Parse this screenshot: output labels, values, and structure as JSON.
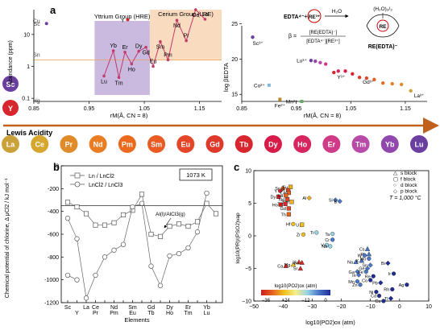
{
  "panel_labels": {
    "a": "a",
    "b": "b",
    "c": "c"
  },
  "side_elements": [
    {
      "symbol": "Sc",
      "color": "#6b3fa0"
    },
    {
      "symbol": "Y",
      "color": "#d8262f"
    }
  ],
  "lanthanide_row": {
    "lewis_acidity_label": "Lewis Acidity",
    "elements": [
      {
        "symbol": "La",
        "color": "#c9a23a"
      },
      {
        "symbol": "Ce",
        "color": "#d6a62e"
      },
      {
        "symbol": "Pr",
        "color": "#e08b2a"
      },
      {
        "symbol": "Nd",
        "color": "#ea7d22"
      },
      {
        "symbol": "Pm",
        "color": "#ec6a1e"
      },
      {
        "symbol": "Sm",
        "color": "#ea5a23"
      },
      {
        "symbol": "Eu",
        "color": "#e44628"
      },
      {
        "symbol": "Gd",
        "color": "#de3a2c"
      },
      {
        "symbol": "Tb",
        "color": "#d8262f"
      },
      {
        "symbol": "Dy",
        "color": "#d81c4a"
      },
      {
        "symbol": "Ho",
        "color": "#d7265f"
      },
      {
        "symbol": "Er",
        "color": "#cf3b86"
      },
      {
        "symbol": "Tm",
        "color": "#b84aa8"
      },
      {
        "symbol": "Yb",
        "color": "#9048ac"
      },
      {
        "symbol": "Lu",
        "color": "#6b3fa0"
      }
    ]
  },
  "chart_data": [
    {
      "id": "abundance",
      "type": "line",
      "ylabel": "Abundance (ppm)",
      "xlabel": "rM(Å, CN = 8)",
      "y_scale": "log",
      "xlim": [
        0.85,
        1.19
      ],
      "ylim": [
        0.08,
        60
      ],
      "x_ticks": [
        0.85,
        0.95,
        1.05,
        1.15
      ],
      "x_tick_labels": [
        "0.85",
        "0.95",
        "1.05",
        "1.15"
      ],
      "y_ticks": [
        0.1,
        1,
        10
      ],
      "y_tick_labels": [
        "0.1",
        "1",
        "10"
      ],
      "group_labels": {
        "yttrium": "Yttrium Group (HRE)",
        "cerium": "Cerium Group (LRE)"
      },
      "group_ranges": {
        "yttrium": [
          0.96,
          1.06
        ],
        "cerium": [
          1.06,
          1.19
        ]
      },
      "reference_points": [
        {
          "label": "Cu",
          "x": 0.87,
          "y": 27,
          "color": "#9a8a4a"
        },
        {
          "label": "Sc",
          "x": 0.87,
          "y": 22,
          "color": "#6b3fa0"
        },
        {
          "label": "Sn",
          "x": 0.87,
          "y": 2.3,
          "color": "#777777"
        },
        {
          "label": "Hg",
          "x": 0.87,
          "y": 0.085,
          "color": "#777777"
        }
      ],
      "series": [
        {
          "x": [
            0.977,
            0.994,
            1.004,
            1.015,
            1.027,
            1.04,
            1.053,
            1.066,
            1.079,
            1.093,
            1.109,
            1.126,
            1.143,
            1.16
          ],
          "y": [
            0.5,
            3.1,
            0.45,
            2.8,
            1.2,
            3.0,
            4.0,
            1.0,
            6.0,
            1.6,
            28,
            6.4,
            60,
            30
          ]
        }
      ],
      "point_labels": [
        "Lu",
        "Yb",
        "Tm",
        "Er",
        "Ho",
        "Dy",
        "Gd",
        "Eu",
        "Sm",
        "Pm",
        "Nd",
        "Pr",
        "Ce",
        "La"
      ],
      "extra_points": [
        {
          "label": "Y",
          "x": 1.02,
          "y": 29
        }
      ]
    },
    {
      "id": "stability",
      "type": "scatter",
      "ylabel": "log βEDTA",
      "xlabel": "rM(Å, CN = 8)",
      "xlim": [
        0.85,
        1.19
      ],
      "ylim": [
        14,
        27
      ],
      "x_ticks": [
        0.85,
        0.95,
        1.05,
        1.15
      ],
      "x_tick_labels": [
        "0.85",
        "0.95",
        "1.05",
        "1.15"
      ],
      "y_ticks": [
        15,
        20,
        25
      ],
      "y_tick_labels": [
        "15",
        "20",
        "25"
      ],
      "points": [
        {
          "label": "Sc³⁺",
          "x": 0.87,
          "y": 23.1,
          "color": "#6b3fa0"
        },
        {
          "label": "Mn²⁺",
          "x": 0.96,
          "y": 14.0,
          "color": "#6aa86a"
        },
        {
          "label": "Co²⁺",
          "x": 0.9,
          "y": 16.3,
          "color": "#7fb8d8"
        },
        {
          "label": "Fe²⁺",
          "x": 0.92,
          "y": 14.3,
          "color": "#c08a2a"
        },
        {
          "label": "Lu³⁺",
          "x": 0.977,
          "y": 19.8,
          "color": "#6b3fa0"
        },
        {
          "label": "",
          "x": 0.985,
          "y": 19.7,
          "color": "#9048ac"
        },
        {
          "label": "",
          "x": 0.994,
          "y": 19.5,
          "color": "#b84aa8"
        },
        {
          "label": "",
          "x": 1.004,
          "y": 19.3,
          "color": "#cf3b86"
        },
        {
          "label": "Y³⁺",
          "x": 1.019,
          "y": 18.1,
          "color": "#d8262f"
        },
        {
          "label": "",
          "x": 1.027,
          "y": 18.3,
          "color": "#d7265f"
        },
        {
          "label": "",
          "x": 1.04,
          "y": 18.3,
          "color": "#d81c4a"
        },
        {
          "label": "",
          "x": 1.053,
          "y": 17.9,
          "color": "#d8262f"
        },
        {
          "label": "Gd³⁺",
          "x": 1.066,
          "y": 17.4,
          "color": "#de3a2c"
        },
        {
          "label": "",
          "x": 1.079,
          "y": 17.3,
          "color": "#e44628"
        },
        {
          "label": "",
          "x": 1.093,
          "y": 17.1,
          "color": "#ea5a23"
        },
        {
          "label": "",
          "x": 1.109,
          "y": 16.6,
          "color": "#ec6a1e"
        },
        {
          "label": "",
          "x": 1.126,
          "y": 16.5,
          "color": "#ea7d22"
        },
        {
          "label": "",
          "x": 1.143,
          "y": 16.4,
          "color": "#e08b2a"
        },
        {
          "label": "La³⁺",
          "x": 1.16,
          "y": 15.5,
          "color": "#c9a23a"
        }
      ],
      "equation": {
        "reactant_1": "EDTA⁴⁻",
        "plus": "+",
        "reactant_2": "RE³⁺",
        "arrow_label": "H₂O",
        "beta_symbol": "β =",
        "beta_numerator": "[RE(EDTA)⁻]",
        "beta_denominator": "[EDTA⁴⁻][RE³⁺]",
        "complex_top": "(H₂O)₂/₃",
        "complex_center": "RE",
        "complex_label": "RE(EDTA)⁻"
      }
    },
    {
      "id": "chloride_potential",
      "type": "line",
      "title_box": "1073 K",
      "ylabel": "Chemical potential of chlorine, Δ μCl2 / kJ mol⁻¹",
      "xlabel": "Elements",
      "ylim": [
        -1200,
        0
      ],
      "y_ticks": [
        0,
        -200,
        -400,
        -600,
        -800,
        -1000,
        -1200
      ],
      "y_tick_labels": [
        "0",
        "-200",
        "-400",
        "-600",
        "-800",
        "-1000",
        "-1200"
      ],
      "categories": [
        "Sc",
        "Y",
        "La",
        "Ce",
        "Pr",
        "Nd",
        "Pm",
        "Sm",
        "Eu",
        "Gd",
        "Tb",
        "Dy",
        "Ho",
        "Er",
        "Tm",
        "Yb",
        "Lu"
      ],
      "x_tick_row1": [
        "Sc",
        "",
        "La",
        "Ce",
        "",
        "Nd",
        "",
        "Sm",
        "",
        "Gd",
        "",
        "Dy",
        "",
        "Er",
        "",
        "Yb",
        ""
      ],
      "x_tick_row2": [
        "",
        "Y",
        "",
        "Pr",
        "",
        "Pm",
        "",
        "Eu",
        "",
        "Tb",
        "",
        "Ho",
        "",
        "Tm",
        "",
        "Lu",
        ""
      ],
      "reference_line": {
        "y": -350,
        "label": "Al(l)/AlCl3(g)"
      },
      "series": [
        {
          "name": "Ln / LnCl2",
          "marker": "square",
          "values": [
            -320,
            -360,
            -420,
            -520,
            -520,
            -500,
            -430,
            -390,
            -250,
            -600,
            -620,
            -530,
            -510,
            -530,
            -490,
            -330,
            -420
          ]
        },
        {
          "name": "LnCl2 / LnCl3",
          "marker": "circle",
          "values": [
            -460,
            -640,
            -1160,
            -960,
            -800,
            -740,
            -690,
            -360,
            -330,
            -880,
            -1050,
            -790,
            -770,
            -720,
            -580,
            -240,
            null
          ]
        }
      ],
      "extra_points": [
        {
          "x_index": 0,
          "y": -960
        },
        {
          "x_index": 1,
          "y": -1000
        }
      ]
    },
    {
      "id": "vapor_pressure",
      "type": "scatter",
      "xlabel": "log10(PO2)ox (atm)",
      "ylabel": "log10(PR)/(PSO2)vap",
      "xlim": [
        -50,
        10
      ],
      "ylim": [
        -10,
        10
      ],
      "x_ticks": [
        -50,
        -40,
        -30,
        -20,
        -10,
        0,
        10
      ],
      "x_tick_labels": [
        "−50",
        "−40",
        "−30",
        "−20",
        "−10",
        "0",
        "10"
      ],
      "y_ticks": [
        -10,
        -5,
        0,
        5,
        10
      ],
      "y_tick_labels": [
        "−10",
        "−5",
        "0",
        "5",
        "10"
      ],
      "annotation": "T = 1,000 °C",
      "legend": [
        {
          "symbol": "△",
          "text": "s block"
        },
        {
          "symbol": "▢",
          "text": "f block"
        },
        {
          "symbol": "○",
          "text": "d block"
        },
        {
          "symbol": "◇",
          "text": "p block"
        }
      ],
      "colorbar": {
        "title": "log10(PO2)ox (atm)",
        "ticks": [
          "−36",
          "−24",
          "−12",
          "0"
        ],
        "colors": [
          "#c81e1e",
          "#e8641e",
          "#f0c020",
          "#f4f08c",
          "#9ad2e6",
          "#4a78c8",
          "#1e2c96"
        ]
      },
      "points": [
        {
          "label": "Sc",
          "x": -40.0,
          "y": 7.3,
          "color": "#e8641e",
          "shape": "circle"
        },
        {
          "label": "Pr",
          "x": -38.2,
          "y": 7.0,
          "color": "#e44628",
          "shape": "square"
        },
        {
          "label": "Eu",
          "x": -37.4,
          "y": 7.5,
          "color": "#f0b020",
          "shape": "square"
        },
        {
          "label": "Y",
          "x": -41.0,
          "y": 6.9,
          "color": "#d8262f",
          "shape": "circle"
        },
        {
          "label": "Ce",
          "x": -38.0,
          "y": 6.6,
          "color": "#e8641e",
          "shape": "square"
        },
        {
          "label": "Dy",
          "x": -41.5,
          "y": 6.0,
          "color": "#d8262f",
          "shape": "square"
        },
        {
          "label": "La",
          "x": -39.0,
          "y": 6.2,
          "color": "#e8641e",
          "shape": "square"
        },
        {
          "label": "Nd",
          "x": -38.5,
          "y": 5.6,
          "color": "#e44628",
          "shape": "square"
        },
        {
          "label": "Sm",
          "x": -37.0,
          "y": 5.2,
          "color": "#f0b020",
          "shape": "square"
        },
        {
          "label": "Tb",
          "x": -39.2,
          "y": 4.9,
          "color": "#d8262f",
          "shape": "square"
        },
        {
          "label": "Ho",
          "x": -40.8,
          "y": 4.8,
          "color": "#c81e1e",
          "shape": "square"
        },
        {
          "label": "Gd",
          "x": -38.0,
          "y": 4.2,
          "color": "#e44628",
          "shape": "square"
        },
        {
          "label": "Al",
          "x": -31.0,
          "y": 5.8,
          "color": "#f0b020",
          "shape": "diamond"
        },
        {
          "label": "Si",
          "x": -22.0,
          "y": 5.5,
          "color": "#4a78c8",
          "shape": "diamond"
        },
        {
          "label": "B",
          "x": -20.5,
          "y": 5.3,
          "color": "#4a78c8",
          "shape": "diamond"
        },
        {
          "label": "Th",
          "x": -38.0,
          "y": 3.3,
          "color": "#e8641e",
          "shape": "square"
        },
        {
          "label": "Hf",
          "x": -36.5,
          "y": 1.8,
          "color": "#f0c020",
          "shape": "circle"
        },
        {
          "label": "U",
          "x": -33.5,
          "y": 1.7,
          "color": "#f0c020",
          "shape": "square"
        },
        {
          "label": "Mg",
          "x": -36.5,
          "y": -4.4,
          "color": "#f0c020",
          "shape": "triangle"
        },
        {
          "label": "Zr",
          "x": -33.0,
          "y": 0.2,
          "color": "#f0c020",
          "shape": "circle"
        },
        {
          "label": "Ti",
          "x": -28.5,
          "y": 0.5,
          "color": "#9ad2e6",
          "shape": "circle"
        },
        {
          "label": "Ta",
          "x": -23.0,
          "y": 0.3,
          "color": "#9ad2e6",
          "shape": "circle"
        },
        {
          "label": "V",
          "x": -25.0,
          "y": -1.4,
          "color": "#9ad2e6",
          "shape": "circle"
        },
        {
          "label": "Nb",
          "x": -23.8,
          "y": -1.6,
          "color": "#9ad2e6",
          "shape": "circle"
        },
        {
          "label": "Cr",
          "x": -23.0,
          "y": -0.6,
          "color": "#4a78c8",
          "shape": "circle"
        },
        {
          "label": "Li",
          "x": -34.5,
          "y": -4.0,
          "color": "#e44628",
          "shape": "triangle"
        },
        {
          "label": "Ba",
          "x": -33.5,
          "y": -4.1,
          "color": "#d8262f",
          "shape": "triangle"
        },
        {
          "label": "Ca",
          "x": -39.0,
          "y": -4.6,
          "color": "#c81e1e",
          "shape": "triangle"
        },
        {
          "label": "Sr",
          "x": -34.0,
          "y": -5.0,
          "color": "#d8262f",
          "shape": "triangle"
        },
        {
          "label": "Na",
          "x": -15.0,
          "y": -4.0,
          "color": "#4a78c8",
          "shape": "triangle"
        },
        {
          "label": "K",
          "x": -13.0,
          "y": -3.8,
          "color": "#4a78c8",
          "shape": "triangle"
        },
        {
          "label": "Cs",
          "x": -11.0,
          "y": -2.0,
          "color": "#4a78c8",
          "shape": "triangle"
        },
        {
          "label": "Rb",
          "x": -10.5,
          "y": -2.8,
          "color": "#4a78c8",
          "shape": "triangle"
        },
        {
          "label": "W",
          "x": -12.0,
          "y": -3.0,
          "color": "#4a78c8",
          "shape": "circle"
        },
        {
          "label": "Mo",
          "x": -10.5,
          "y": -3.5,
          "color": "#4a78c8",
          "shape": "circle"
        },
        {
          "label": "Ga",
          "x": -14.5,
          "y": -5.5,
          "color": "#4a78c8",
          "shape": "diamond"
        },
        {
          "label": "In",
          "x": -14.0,
          "y": -6.0,
          "color": "#4a78c8",
          "shape": "diamond"
        },
        {
          "label": "Ge",
          "x": -11.0,
          "y": -5.0,
          "color": "#4a78c8",
          "shape": "diamond"
        },
        {
          "label": "Fe",
          "x": -11.5,
          "y": -5.5,
          "color": "#4a78c8",
          "shape": "circle"
        },
        {
          "label": "Sn",
          "x": -10.0,
          "y": -4.5,
          "color": "#4a78c8",
          "shape": "diamond"
        },
        {
          "label": "Mn",
          "x": -14.5,
          "y": -7.0,
          "color": "#4a78c8",
          "shape": "circle"
        },
        {
          "label": "Zn",
          "x": -13.5,
          "y": -7.5,
          "color": "#4a78c8",
          "shape": "circle"
        },
        {
          "label": "Co",
          "x": -10.0,
          "y": -6.8,
          "color": "#1e2c96",
          "shape": "circle"
        },
        {
          "label": "Re",
          "x": -9.0,
          "y": -6.2,
          "color": "#1e2c96",
          "shape": "circle"
        },
        {
          "label": "Bi",
          "x": -4.0,
          "y": -4.2,
          "color": "#1e2c96",
          "shape": "diamond"
        },
        {
          "label": "Ir",
          "x": -2.0,
          "y": -5.8,
          "color": "#1e2c96",
          "shape": "circle"
        },
        {
          "label": "Pb",
          "x": -6.5,
          "y": -7.2,
          "color": "#1e2c96",
          "shape": "diamond"
        },
        {
          "label": "Ni",
          "x": -8.0,
          "y": -8.6,
          "color": "#1e2c96",
          "shape": "circle"
        },
        {
          "label": "Cd",
          "x": -7.0,
          "y": -9.2,
          "color": "#1e2c96",
          "shape": "circle"
        },
        {
          "label": "Rh",
          "x": -2.5,
          "y": -8.2,
          "color": "#1e2c96",
          "shape": "circle"
        },
        {
          "label": "Ag",
          "x": 2.5,
          "y": -7.5,
          "color": "#1e2c96",
          "shape": "circle"
        },
        {
          "label": "Tl",
          "x": -3.0,
          "y": -9.6,
          "color": "#1e2c96",
          "shape": "diamond"
        },
        {
          "label": "Cu",
          "x": -5.5,
          "y": -10.0,
          "color": "#1e2c96",
          "shape": "circle"
        }
      ]
    }
  ]
}
